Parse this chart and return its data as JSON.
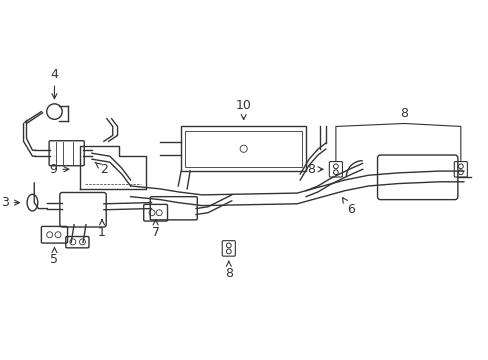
{
  "background": "#ffffff",
  "line_color": "#333333",
  "lw": 1.0
}
